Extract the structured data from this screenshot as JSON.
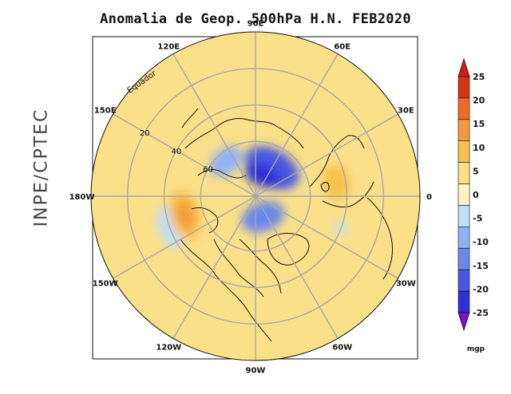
{
  "title": "Anomalia de Geop. 500hPa H.N. FEB2020",
  "side_label": "INPE/CPTEC",
  "equator_label": "Equador",
  "lon_labels": [
    {
      "text": "90E",
      "lon": 90
    },
    {
      "text": "60E",
      "lon": 60
    },
    {
      "text": "30E",
      "lon": 30
    },
    {
      "text": "0",
      "lon": 0
    },
    {
      "text": "30W",
      "lon": -30
    },
    {
      "text": "60W",
      "lon": -60
    },
    {
      "text": "90W",
      "lon": -90
    },
    {
      "text": "120W",
      "lon": -120
    },
    {
      "text": "150W",
      "lon": -150
    },
    {
      "text": "180W",
      "lon": 180
    },
    {
      "text": "150E",
      "lon": 150
    },
    {
      "text": "120E",
      "lon": 120
    }
  ],
  "lat_labels": [
    {
      "text": "20",
      "lat": 20
    },
    {
      "text": "40",
      "lat": 40
    },
    {
      "text": "60",
      "lat": 60
    }
  ],
  "colorbar": {
    "unit": "mgp",
    "levels": [
      "25",
      "20",
      "15",
      "10",
      "5",
      "0",
      "-5",
      "-10",
      "-15",
      "-20",
      "-25"
    ],
    "colors": [
      "#d83214",
      "#f06a26",
      "#f59a3a",
      "#f8c14c",
      "#fae089",
      "#fcf3c4",
      "#bfdff7",
      "#90b3f2",
      "#6a87ec",
      "#4a58e3",
      "#2f2fd8"
    ],
    "top_arrow_color": "#d81a12",
    "bottom_arrow_color": "#7a12c8"
  },
  "anomaly_blobs": [
    {
      "name": "low-arctic-scandinavia",
      "lon": 60,
      "lat": 72,
      "rx": 16,
      "ry": 10,
      "level": 9
    },
    {
      "name": "low-arctic-core",
      "lon": 70,
      "lat": 78,
      "rx": 10,
      "ry": 6,
      "level": 10
    },
    {
      "name": "low-greenland-canada",
      "lon": -70,
      "lat": 78,
      "rx": 12,
      "ry": 8,
      "level": 8
    },
    {
      "name": "low-siberia-west",
      "lon": 130,
      "lat": 65,
      "rx": 10,
      "ry": 7,
      "level": 7
    },
    {
      "name": "low-alaska",
      "lon": -160,
      "lat": 40,
      "rx": 12,
      "ry": 6,
      "level": 6
    },
    {
      "name": "low-atlantic-small",
      "lon": -20,
      "lat": 40,
      "rx": 4,
      "ry": 3,
      "level": 6
    },
    {
      "name": "high-pacific",
      "lon": -165,
      "lat": 50,
      "rx": 14,
      "ry": 8,
      "level": 3
    },
    {
      "name": "high-pacific-core",
      "lon": -165,
      "lat": 50,
      "rx": 8,
      "ry": 5,
      "level": 2
    },
    {
      "name": "high-europe-iberia",
      "lon": 10,
      "lat": 45,
      "rx": 10,
      "ry": 7,
      "level": 3
    },
    {
      "name": "high-asia-east",
      "lon": 120,
      "lat": 45,
      "rx": 14,
      "ry": 8,
      "level": 4
    },
    {
      "name": "high-atlantic",
      "lon": -35,
      "lat": 55,
      "rx": 10,
      "ry": 6,
      "level": 4
    },
    {
      "name": "high-eastern-us",
      "lon": -75,
      "lat": 40,
      "rx": 8,
      "ry": 5,
      "level": 4
    }
  ]
}
